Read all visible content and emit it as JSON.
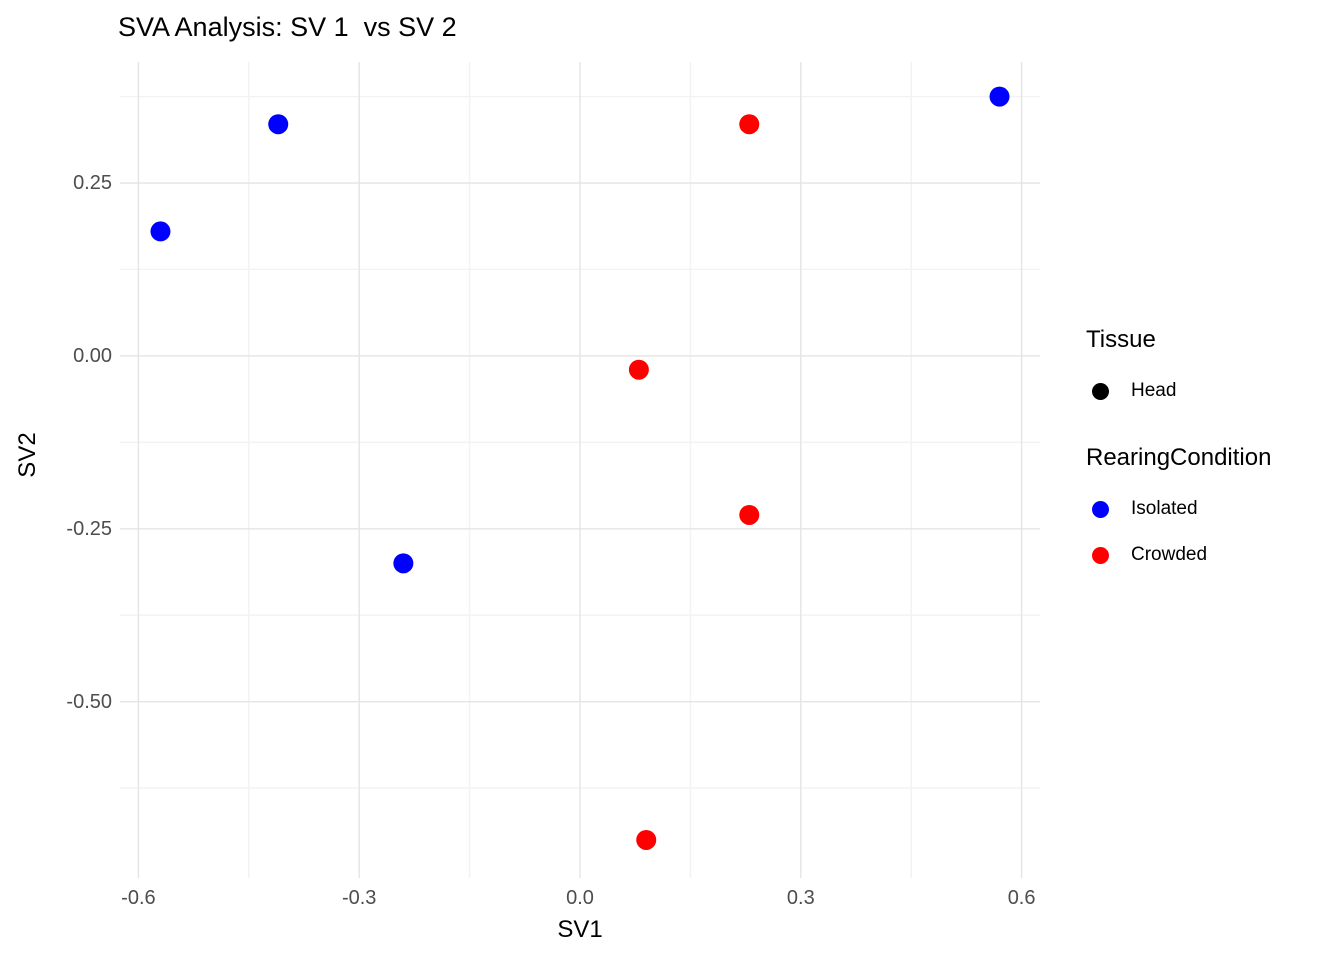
{
  "title": "SVA Analysis: SV 1  vs SV 2",
  "chart_data": {
    "type": "scatter",
    "title": "SVA Analysis: SV 1  vs SV 2",
    "xlabel": "SV1",
    "ylabel": "SV2",
    "xlim": [
      -0.625,
      0.625
    ],
    "ylim": [
      -0.755,
      0.425
    ],
    "x_ticks": [
      -0.6,
      -0.3,
      0.0,
      0.3,
      0.6
    ],
    "x_tick_labels": [
      "-0.6",
      "-0.3",
      "0.0",
      "0.3",
      "0.6"
    ],
    "y_ticks": [
      0.25,
      0.0,
      -0.25,
      -0.5
    ],
    "y_tick_labels": [
      "0.25",
      "0.00",
      "-0.25",
      "-0.50"
    ],
    "x_minor_ticks": [
      -0.45,
      -0.15,
      0.15,
      0.45
    ],
    "y_minor_ticks": [
      0.375,
      0.125,
      -0.125,
      -0.375,
      -0.625
    ],
    "grid": true,
    "legend_position": "right",
    "point_radius": 10,
    "series": [
      {
        "name": "Isolated",
        "color": "#0000FF",
        "points": [
          [
            -0.57,
            0.18
          ],
          [
            -0.41,
            0.335
          ],
          [
            -0.24,
            -0.3
          ],
          [
            0.57,
            0.375
          ]
        ]
      },
      {
        "name": "Crowded",
        "color": "#FF0000",
        "points": [
          [
            0.08,
            -0.02
          ],
          [
            0.23,
            0.335
          ],
          [
            0.23,
            -0.23
          ],
          [
            0.09,
            -0.7
          ]
        ]
      }
    ]
  },
  "legend": {
    "tissue": {
      "title": "Tissue",
      "entries": [
        {
          "label": "Head",
          "color": "#000000"
        }
      ]
    },
    "rearing": {
      "title": "RearingCondition",
      "entries": [
        {
          "label": "Isolated",
          "color": "#0000FF"
        },
        {
          "label": "Crowded",
          "color": "#FF0000"
        }
      ]
    }
  },
  "colors": {
    "grid_major": "#e4e4e4",
    "grid_minor": "#f2f2f2",
    "tick_text": "#4d4d4d",
    "background": "#ffffff"
  }
}
